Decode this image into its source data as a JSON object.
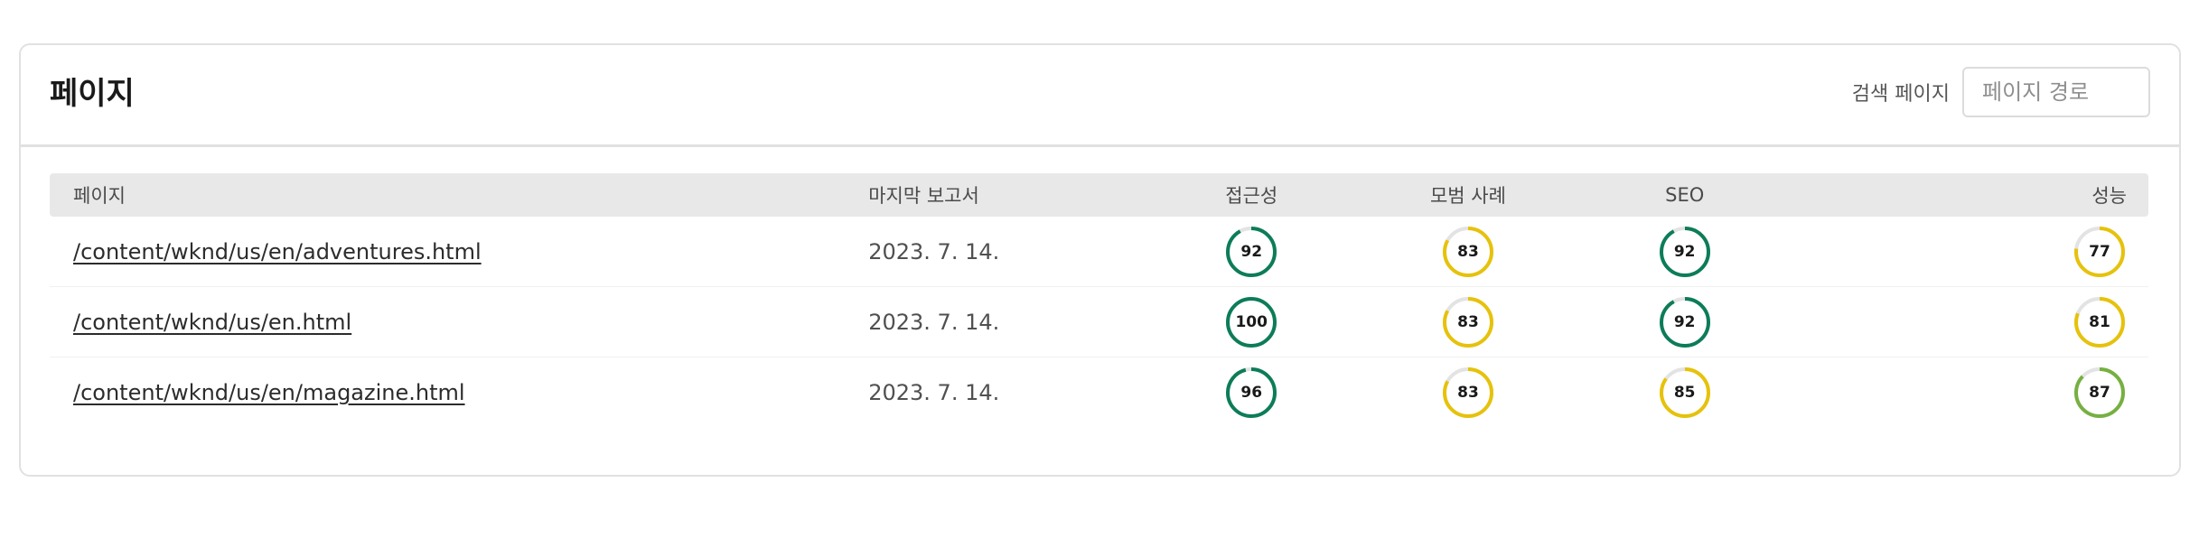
{
  "header": {
    "title": "페이지",
    "search_label": "검색 페이지",
    "search_placeholder": "페이지 경로",
    "search_value": ""
  },
  "columns": {
    "page": "페이지",
    "last_report": "마지막 보고서",
    "accessibility": "접근성",
    "best_practices": "모범 사례",
    "seo": "SEO",
    "performance": "성능"
  },
  "colors": {
    "good": "#0c7c59",
    "average": "#e6c20a",
    "good_light": "#76b041",
    "track": "#e3e3e3"
  },
  "rows": [
    {
      "path": "/content/wknd/us/en/adventures.html",
      "date": "2023. 7. 14.",
      "accessibility": 92,
      "best_practices": 83,
      "seo": 92,
      "performance": 77
    },
    {
      "path": "/content/wknd/us/en.html",
      "date": "2023. 7. 14.",
      "accessibility": 100,
      "best_practices": 83,
      "seo": 92,
      "performance": 81
    },
    {
      "path": "/content/wknd/us/en/magazine.html",
      "date": "2023. 7. 14.",
      "accessibility": 96,
      "best_practices": 83,
      "seo": 85,
      "performance": 87
    }
  ]
}
